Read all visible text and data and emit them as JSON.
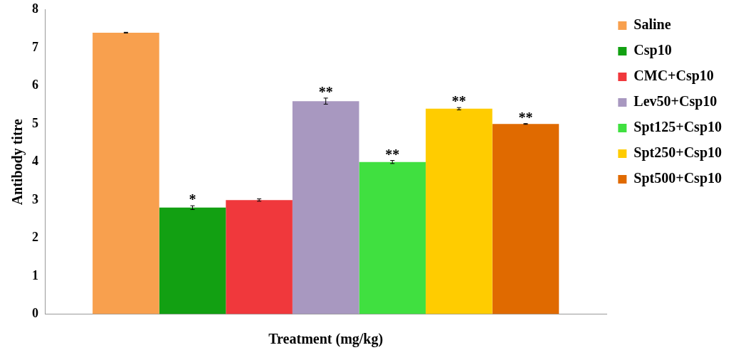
{
  "chart_data": {
    "type": "bar",
    "xlabel": "Treatment (mg/kg)",
    "ylabel": "Antibody titre",
    "categories": [
      null
    ],
    "series": [
      {
        "name": "Saline",
        "color": "#f8a04e",
        "values": [
          7.4
        ],
        "errors": [
          0.01
        ]
      },
      {
        "name": "Csp10",
        "color": "#12a012",
        "values": [
          2.8
        ],
        "errors": [
          0.05
        ],
        "value_labels": [
          "*"
        ]
      },
      {
        "name": "CMC+Csp10",
        "color": "#f0383c",
        "values": [
          3.0
        ],
        "errors": [
          0.03
        ]
      },
      {
        "name": "Lev50+Csp10",
        "color": "#a898c0",
        "values": [
          5.6
        ],
        "errors": [
          0.08
        ],
        "value_labels": [
          "**"
        ]
      },
      {
        "name": "Spt125+Csp10",
        "color": "#40e040",
        "values": [
          4.0
        ],
        "errors": [
          0.04
        ],
        "value_labels": [
          "**"
        ]
      },
      {
        "name": "Spt250+Csp10",
        "color": "#ffcc00",
        "values": [
          5.4
        ],
        "errors": [
          0.03
        ],
        "value_labels": [
          "**"
        ]
      },
      {
        "name": "Spt500+Csp10",
        "color": "#e06a00",
        "values": [
          5.0
        ],
        "errors": [
          0.01
        ],
        "value_labels": [
          "**"
        ]
      }
    ],
    "ylim": [
      0,
      8
    ],
    "yticks": [
      0,
      1,
      2,
      3,
      4,
      5,
      6,
      7,
      8
    ],
    "grid": false,
    "legend": "right"
  }
}
